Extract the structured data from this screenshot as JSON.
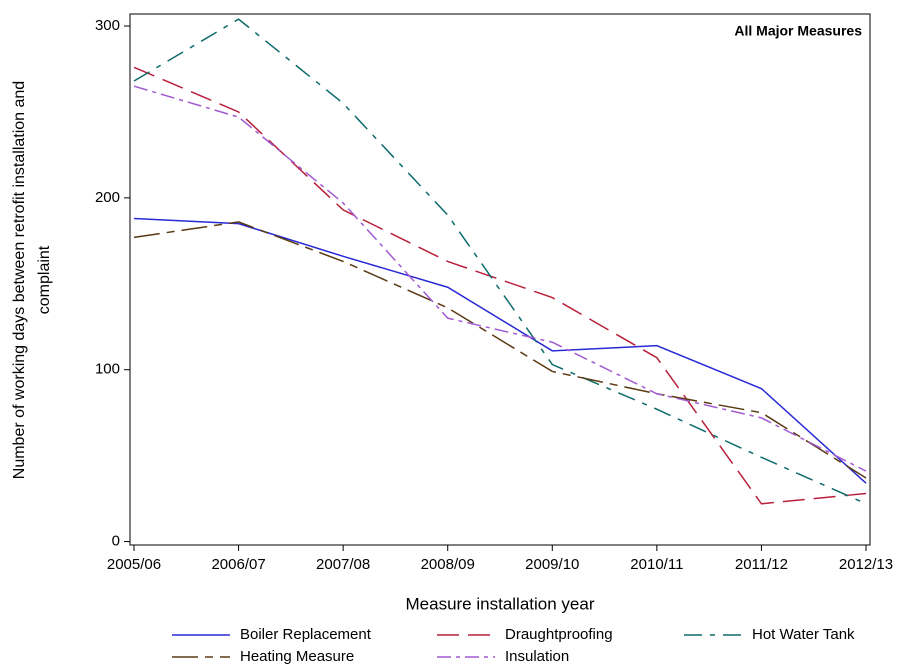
{
  "chart_data": {
    "type": "line",
    "annotation": "All Major Measures",
    "x_label": "Measure installation year",
    "y_label": [
      "Number of working days between  retrofit installation and",
      "complaint"
    ],
    "categories": [
      "2005/06",
      "2006/07",
      "2007/08",
      "2008/09",
      "2009/10",
      "2010/11",
      "2011/12",
      "2012/13"
    ],
    "ylim": [
      -2,
      307
    ],
    "yticks": [
      0,
      100,
      200,
      300
    ],
    "series": [
      {
        "name": "Boiler Replacement",
        "color": "#2a2ad6",
        "dash": "none",
        "values": [
          188,
          185,
          166,
          148,
          111,
          114,
          89,
          34
        ]
      },
      {
        "name": "Draughtproofing",
        "color": "#b8203c",
        "dash": "22,9",
        "values": [
          276,
          250,
          193,
          163,
          142,
          107,
          22,
          28
        ]
      },
      {
        "name": "Hot Water Tank",
        "color": "#0e6b6b",
        "dash": "18,8,5,8",
        "values": [
          268,
          304,
          255,
          190,
          103,
          77,
          49,
          22
        ]
      },
      {
        "name": "Heating Measure",
        "color": "#5a3a12",
        "dash": "26,7,8,7",
        "values": [
          177,
          186,
          163,
          136,
          99,
          86,
          75,
          37
        ]
      },
      {
        "name": "Insulation",
        "color": "#a25ad2",
        "dash": "14,5,4,5",
        "values": [
          265,
          247,
          197,
          130,
          116,
          86,
          72,
          41
        ]
      }
    ]
  }
}
